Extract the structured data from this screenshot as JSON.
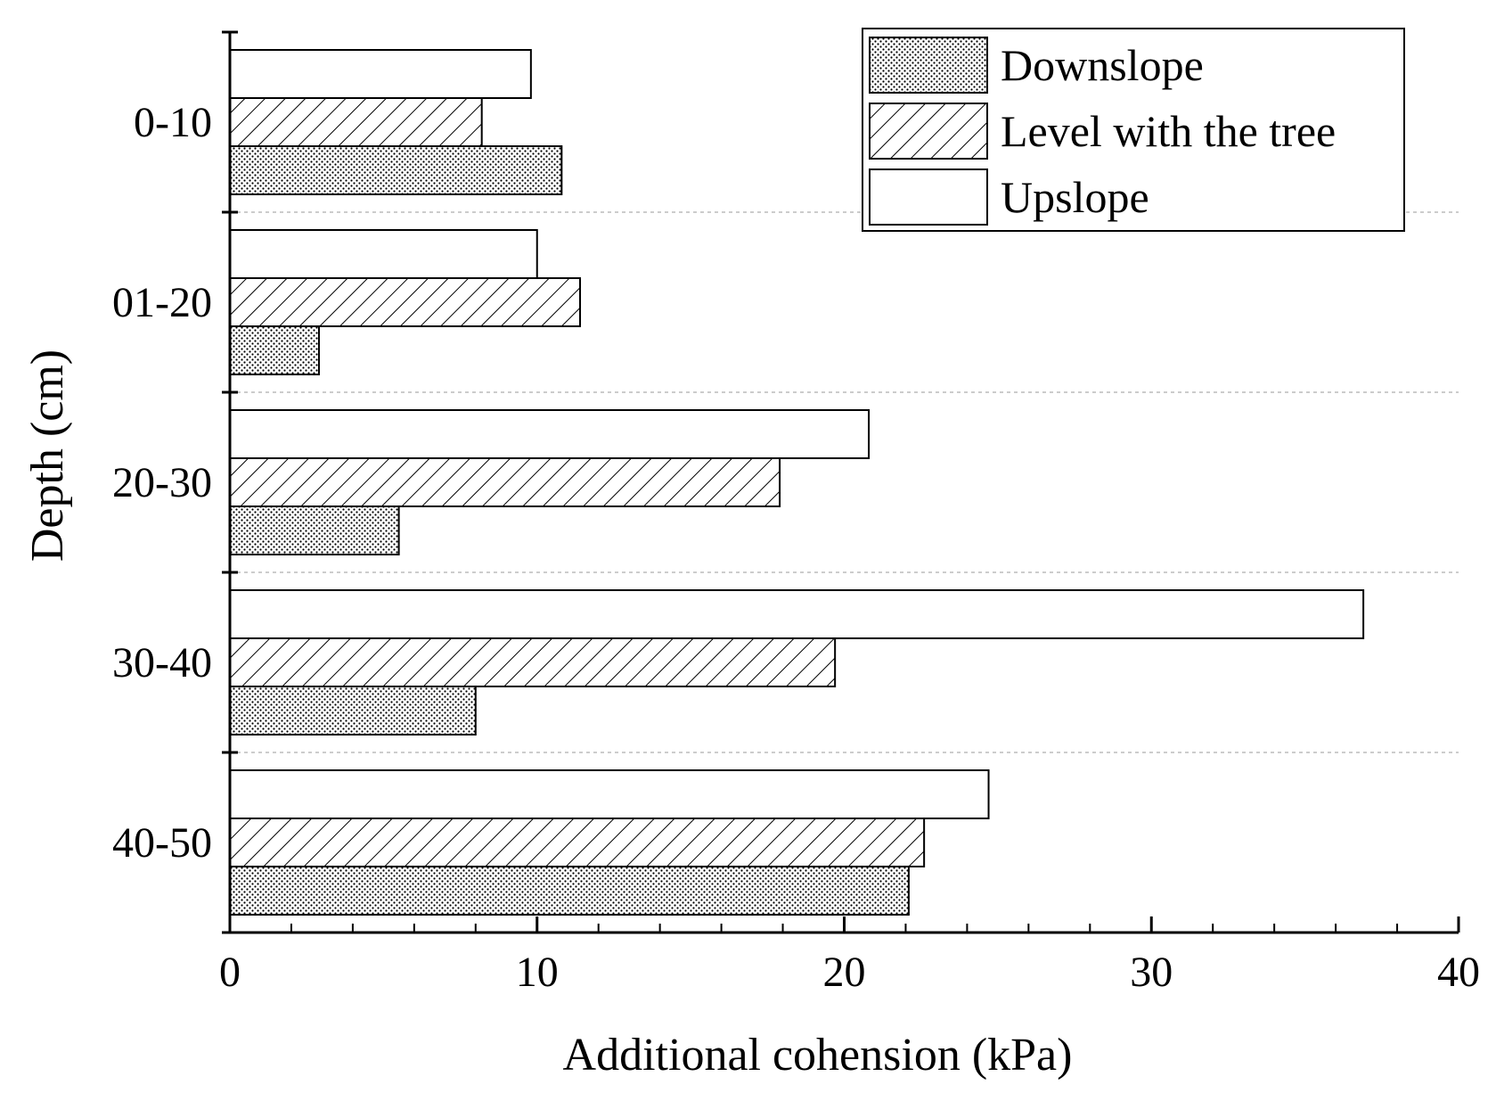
{
  "chart_data": {
    "type": "bar",
    "orientation": "horizontal",
    "categories": [
      "0-10",
      "01-20",
      "20-30",
      "30-40",
      "40-50"
    ],
    "series": [
      {
        "name": "Downslope",
        "values": [
          10.8,
          2.9,
          5.5,
          8.0,
          22.1
        ],
        "pattern": "dots"
      },
      {
        "name": "Level with the tree",
        "values": [
          8.2,
          11.4,
          17.9,
          19.7,
          22.6
        ],
        "pattern": "hatch"
      },
      {
        "name": "Upslope",
        "values": [
          9.8,
          10.0,
          20.8,
          36.9,
          24.7
        ],
        "pattern": "none"
      }
    ],
    "x_ticks": [
      "0",
      "10",
      "20",
      "30",
      "40"
    ],
    "xlabel": "Additional cohension (kPa)",
    "ylabel": "Depth (cm)",
    "xlim": [
      0,
      40
    ],
    "grid": "dashed-horizontal-separators",
    "legend_position": "top-right",
    "colors": {
      "bar_stroke": "#000000",
      "fill": "#ffffff",
      "grid": "#bbbbbb"
    }
  }
}
